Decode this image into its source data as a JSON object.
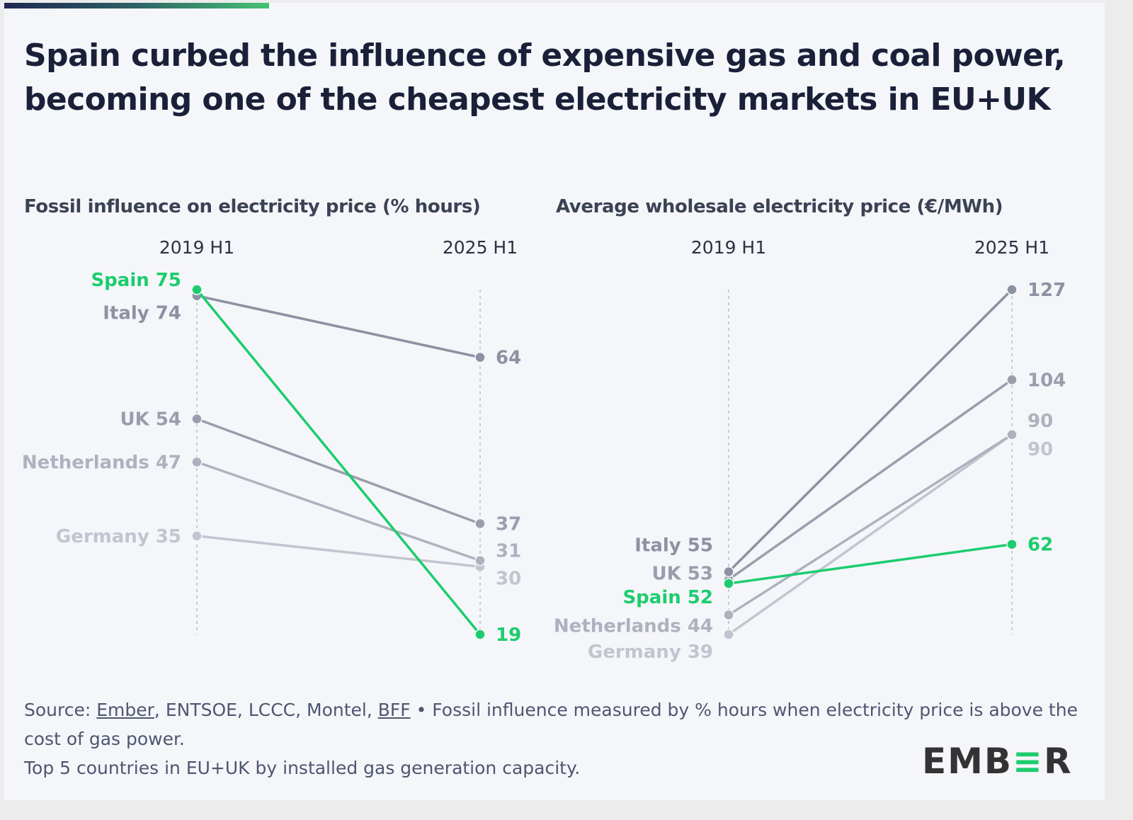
{
  "title": "Spain curbed the influence of expensive gas and coal power, becoming one of the cheapest electricity markets in EU+UK",
  "chart_data": [
    {
      "type": "line",
      "subtype": "slope",
      "title": "Fossil influence on electricity price (% hours)",
      "x": [
        "2019 H1",
        "2025 H1"
      ],
      "highlight": "Spain",
      "series": [
        {
          "name": "Spain",
          "values": [
            75,
            19
          ]
        },
        {
          "name": "Italy",
          "values": [
            74,
            64
          ]
        },
        {
          "name": "UK",
          "values": [
            54,
            37
          ]
        },
        {
          "name": "Netherlands",
          "values": [
            47,
            31
          ]
        },
        {
          "name": "Germany",
          "values": [
            35,
            30
          ]
        }
      ],
      "ylim": [
        19,
        75
      ]
    },
    {
      "type": "line",
      "subtype": "slope",
      "title": "Average wholesale electricity price (€/MWh)",
      "x": [
        "2019 H1",
        "2025 H1"
      ],
      "highlight": "Spain",
      "series": [
        {
          "name": "Italy",
          "values": [
            55,
            127
          ]
        },
        {
          "name": "UK",
          "values": [
            53,
            104
          ]
        },
        {
          "name": "Spain",
          "values": [
            52,
            62
          ]
        },
        {
          "name": "Netherlands",
          "values": [
            44,
            90
          ]
        },
        {
          "name": "Germany",
          "values": [
            39,
            90
          ]
        }
      ],
      "ylim": [
        39,
        127
      ]
    }
  ],
  "colors": {
    "highlight": "#1ccd6e",
    "Italy": "#8d92a2",
    "UK": "#9a9eac",
    "Netherlands": "#aeb2be",
    "Germany": "#c2c5cf",
    "axis": "#c8cbd2",
    "axis_label": "#2c3142"
  },
  "footer": {
    "source_prefix": "Source: ",
    "source_link_1": "Ember",
    "source_middle": ", ENTSOE, LCCC, Montel, ",
    "source_link_2": "BFF",
    "source_suffix": " • Fossil influence measured by % hours when electricity price is above the cost of gas power.",
    "note": "Top 5 countries in EU+UK by installed gas generation capacity."
  },
  "logo": {
    "part1": "EMB",
    "part2": "≡",
    "part3": "R"
  }
}
